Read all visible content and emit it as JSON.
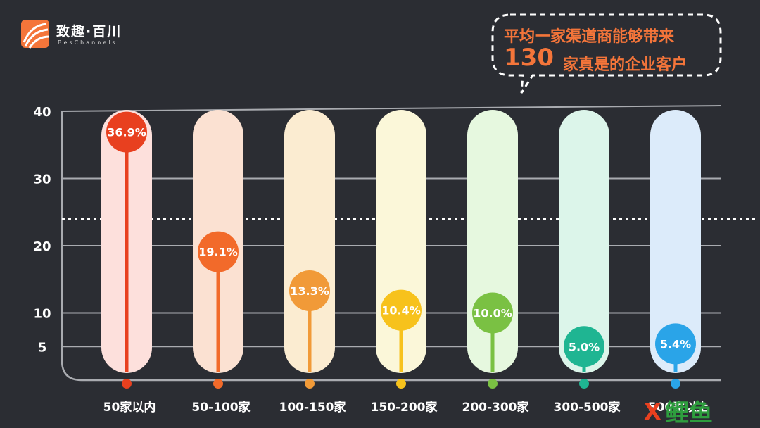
{
  "logo": {
    "name_cn": "致趣·百川",
    "name_en": "BesChannels"
  },
  "callout": {
    "line1": "平均一家渠道商能够带来",
    "number": "130",
    "line2": "家真是的企业客户"
  },
  "colors": {
    "background": "#2b2d33",
    "accent": "#f4753a",
    "grid": "#a9abb0",
    "text": "#ffffff"
  },
  "chart_data": {
    "type": "bar",
    "categories": [
      "50家以内",
      "50-100家",
      "100-150家",
      "150-200家",
      "200-300家",
      "300-500家",
      "500家以上"
    ],
    "values": [
      36.9,
      19.1,
      13.3,
      10.4,
      10.0,
      5.0,
      5.4
    ],
    "value_labels": [
      "36.9%",
      "19.1%",
      "13.3%",
      "10.4%",
      "10.0%",
      "5.0%",
      "5.4%"
    ],
    "colors": [
      "#e8401f",
      "#f26a2a",
      "#f19a38",
      "#f7c21c",
      "#7ac143",
      "#1fb592",
      "#2aa4e8"
    ],
    "pill_colors": [
      "#fde0dc",
      "#fbe1d2",
      "#fbecd1",
      "#fbf7d9",
      "#e6f8df",
      "#dcf5ea",
      "#dcebfa"
    ],
    "yticks": [
      5,
      10,
      20,
      30,
      40
    ],
    "ylim": [
      0,
      40
    ],
    "reference_line": 24,
    "grid": true,
    "title": "",
    "xlabel": "",
    "ylabel": ""
  },
  "watermark": "X鲤鱼"
}
